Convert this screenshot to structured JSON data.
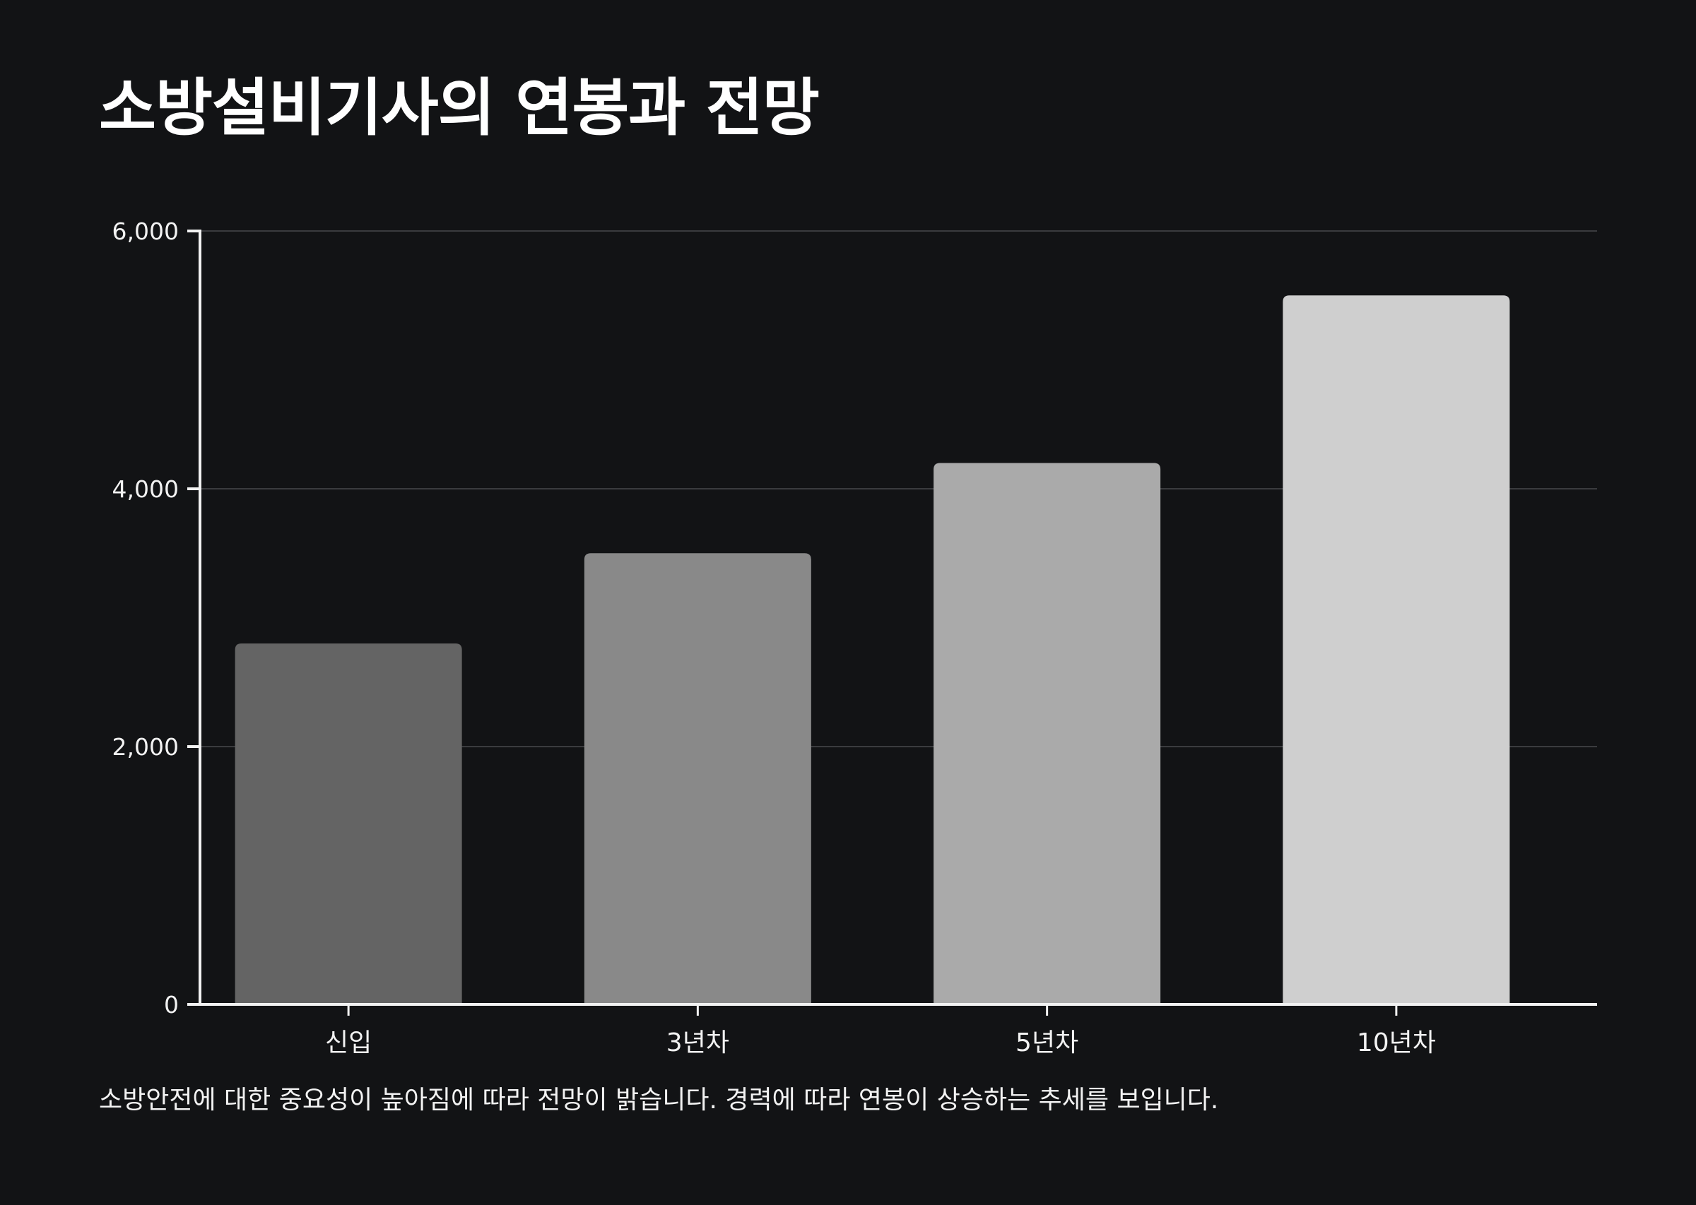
{
  "page": {
    "title": "소방설비기사의 연봉과 전망",
    "caption": "소방안전에 대한 중요성이 높아짐에 따라 전망이 밝습니다. 경력에 따라 연봉이 상승하는 추세를 보입니다."
  },
  "colors": {
    "background": "#121315",
    "axis": "#f2f2f2",
    "grid": "#3a3b3e",
    "bars": [
      "#646464",
      "#898989",
      "#aaaaaa",
      "#cfcfcf"
    ]
  },
  "chart_data": {
    "type": "bar",
    "categories": [
      "신입",
      "3년차",
      "5년차",
      "10년차"
    ],
    "values": [
      2800,
      3500,
      4200,
      5500
    ],
    "ylim": [
      0,
      6000
    ],
    "yticks": [
      0,
      2000,
      4000,
      6000
    ],
    "ytick_labels": [
      "0",
      "2,000",
      "4,000",
      "6,000"
    ],
    "grid": true,
    "xlabel": "",
    "ylabel": ""
  }
}
